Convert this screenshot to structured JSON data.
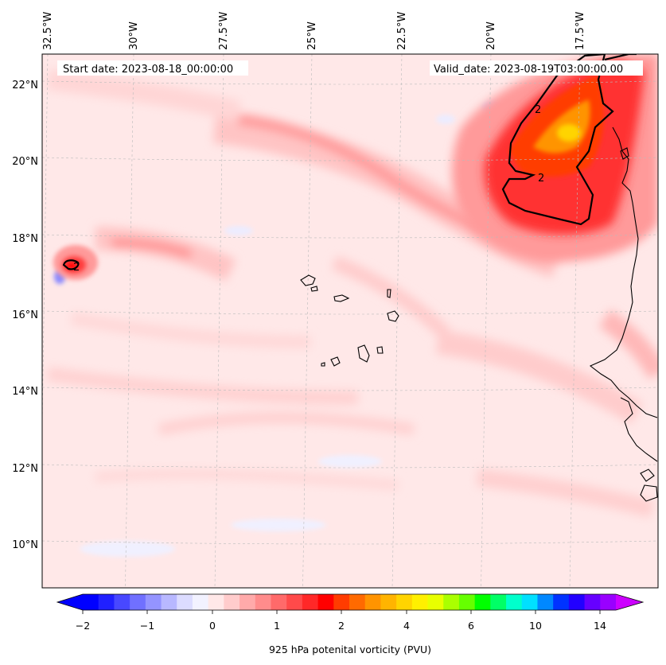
{
  "map": {
    "start_label": "Start date: 2023-08-18_00:00:00",
    "valid_label": "Valid_date: 2023-08-19T03:00:00.00",
    "lon_ticks": [
      "32.5°W",
      "30°W",
      "27.5°W",
      "25°W",
      "22.5°W",
      "20°W",
      "17.5°W"
    ],
    "lat_ticks": [
      "22°N",
      "20°N",
      "18°N",
      "16°N",
      "14°N",
      "12°N",
      "10°N"
    ],
    "contour_label": "2",
    "colors": {
      "background": "#ffe8e8",
      "coast": "#000000",
      "contour": "#000000",
      "grid": "#bbbbbb"
    }
  },
  "colorbar": {
    "label": "925 hPa potenital vorticity (PVU)",
    "ticks": [
      "−2",
      "−1",
      "0",
      "1",
      "2",
      "4",
      "6",
      "10",
      "14"
    ],
    "colors": [
      "#0000ff",
      "#2020ff",
      "#4848ff",
      "#7070ff",
      "#9494ff",
      "#b8b8ff",
      "#dcdcff",
      "#f2f2ff",
      "#ffe8e8",
      "#ffcccc",
      "#ffaaaa",
      "#ff8c8c",
      "#ff6a6a",
      "#ff4a4a",
      "#ff2828",
      "#ff0000",
      "#ff3c00",
      "#ff6a00",
      "#ff9400",
      "#ffb400",
      "#ffd400",
      "#fff000",
      "#e8ff00",
      "#aaff00",
      "#66ff00",
      "#00ff00",
      "#00ff66",
      "#00ffcc",
      "#00e0ff",
      "#0088ff",
      "#0033ff",
      "#2200ff",
      "#6600ff",
      "#9900ff"
    ],
    "extend_low_color": "#0000ff",
    "extend_high_color": "#cc00ff"
  }
}
